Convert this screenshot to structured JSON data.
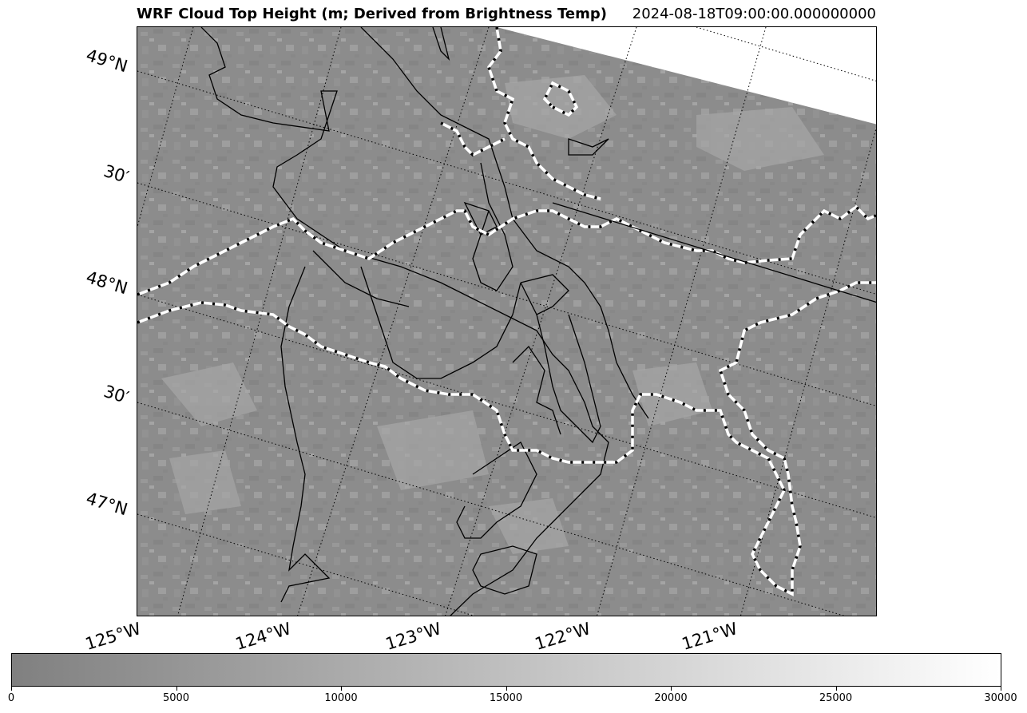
{
  "title": "WRF Cloud Top Height (m; Derived from Brightness Temp)",
  "timestamp": "2024-08-18T09:00:00.000000000",
  "lat_labels": [
    "49°N",
    "30′",
    "48°N",
    "30′",
    "47°N"
  ],
  "lon_labels": [
    "125°W",
    "124°W",
    "123°W",
    "122°W",
    "121°W"
  ],
  "colorbar": {
    "min": 0,
    "max": 30000,
    "ticks": [
      "0",
      "5000",
      "10000",
      "15000",
      "20000",
      "25000",
      "30000"
    ],
    "color_low": "#808080",
    "color_high": "#ffffff"
  },
  "colors": {
    "border_line": "#ffffff",
    "border_dash": "#000000",
    "coastline": "#000000",
    "gridline": "#000000"
  }
}
